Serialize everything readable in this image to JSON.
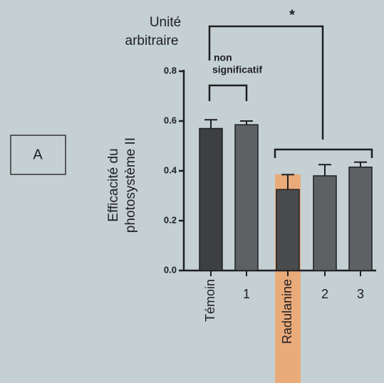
{
  "panel": "A",
  "chart_data": {
    "type": "bar",
    "unit_label": [
      "Unité",
      "arbitraire"
    ],
    "y_label": [
      "Efficacité du",
      "photosystème II"
    ],
    "categories": [
      "Témoin",
      "1",
      "Radulanine",
      "2",
      "3"
    ],
    "values": [
      0.57,
      0.585,
      0.325,
      0.38,
      0.415
    ],
    "errors": [
      0.035,
      0.015,
      0.06,
      0.045,
      0.02
    ],
    "colors": [
      "#3d3f42",
      "#5e6164",
      "#4a4b4c",
      "#5e6164",
      "#5e6164"
    ],
    "highlight": "Radulanine",
    "ylim": [
      0,
      0.8
    ],
    "yticks": [
      {
        "value": 0,
        "label": "0.0"
      },
      0.2,
      0.4,
      0.6,
      0.8
    ],
    "annotations": {
      "ns": [
        "non",
        "significatif"
      ],
      "star": "*"
    }
  }
}
